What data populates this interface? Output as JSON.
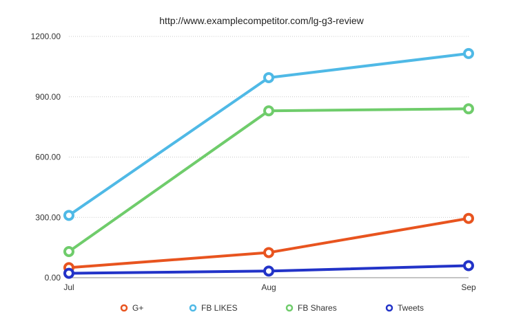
{
  "chart_data": {
    "type": "line",
    "title": "http://www.examplecompetitor.com/lg-g3-review",
    "xlabel": "",
    "ylabel": "",
    "categories": [
      "Jul",
      "Aug",
      "Sep"
    ],
    "ylim": [
      0,
      1200
    ],
    "yticks": [
      "0.00",
      "300.00",
      "600.00",
      "900.00",
      "1200.00"
    ],
    "grid": true,
    "legend_position": "bottom",
    "series": [
      {
        "name": "G+",
        "color": "#e8541f",
        "values": [
          50,
          125,
          295
        ]
      },
      {
        "name": "FB LIKES",
        "color": "#4fb9e6",
        "values": [
          310,
          995,
          1115
        ]
      },
      {
        "name": "FB Shares",
        "color": "#6fcc6b",
        "values": [
          130,
          830,
          840
        ]
      },
      {
        "name": "Tweets",
        "color": "#2233c8",
        "values": [
          22,
          33,
          60
        ]
      }
    ]
  }
}
